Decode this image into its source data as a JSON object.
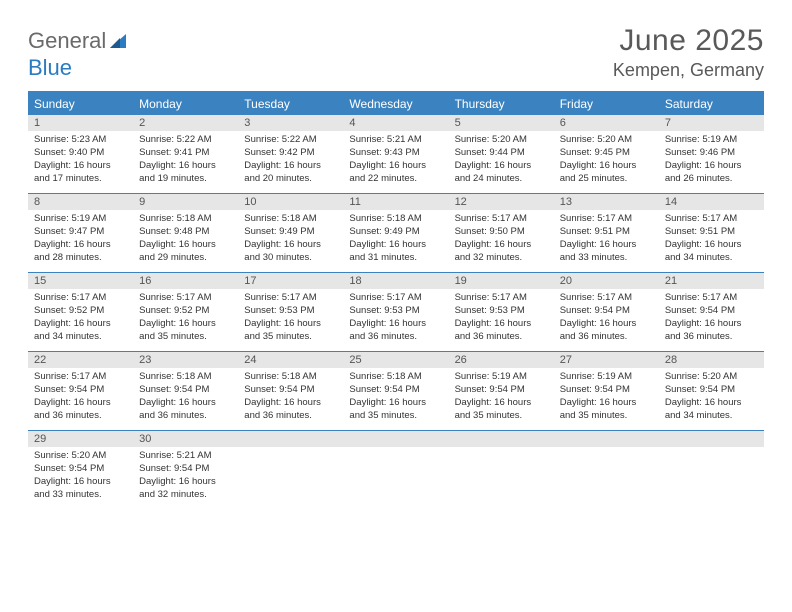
{
  "logo": {
    "general": "General",
    "blue": "Blue"
  },
  "title": "June 2025",
  "location": "Kempen, Germany",
  "colors": {
    "header_bg": "#3b83c0",
    "header_text": "#ffffff",
    "daynum_bg": "#e6e6e6",
    "border": "#3b83c0",
    "body_text": "#333333",
    "title_text": "#595959"
  },
  "weekdays": [
    "Sunday",
    "Monday",
    "Tuesday",
    "Wednesday",
    "Thursday",
    "Friday",
    "Saturday"
  ],
  "weeks": [
    [
      {
        "n": "1",
        "sr": "5:23 AM",
        "ss": "9:40 PM",
        "dl": "16 hours and 17 minutes."
      },
      {
        "n": "2",
        "sr": "5:22 AM",
        "ss": "9:41 PM",
        "dl": "16 hours and 19 minutes."
      },
      {
        "n": "3",
        "sr": "5:22 AM",
        "ss": "9:42 PM",
        "dl": "16 hours and 20 minutes."
      },
      {
        "n": "4",
        "sr": "5:21 AM",
        "ss": "9:43 PM",
        "dl": "16 hours and 22 minutes."
      },
      {
        "n": "5",
        "sr": "5:20 AM",
        "ss": "9:44 PM",
        "dl": "16 hours and 24 minutes."
      },
      {
        "n": "6",
        "sr": "5:20 AM",
        "ss": "9:45 PM",
        "dl": "16 hours and 25 minutes."
      },
      {
        "n": "7",
        "sr": "5:19 AM",
        "ss": "9:46 PM",
        "dl": "16 hours and 26 minutes."
      }
    ],
    [
      {
        "n": "8",
        "sr": "5:19 AM",
        "ss": "9:47 PM",
        "dl": "16 hours and 28 minutes."
      },
      {
        "n": "9",
        "sr": "5:18 AM",
        "ss": "9:48 PM",
        "dl": "16 hours and 29 minutes."
      },
      {
        "n": "10",
        "sr": "5:18 AM",
        "ss": "9:49 PM",
        "dl": "16 hours and 30 minutes."
      },
      {
        "n": "11",
        "sr": "5:18 AM",
        "ss": "9:49 PM",
        "dl": "16 hours and 31 minutes."
      },
      {
        "n": "12",
        "sr": "5:17 AM",
        "ss": "9:50 PM",
        "dl": "16 hours and 32 minutes."
      },
      {
        "n": "13",
        "sr": "5:17 AM",
        "ss": "9:51 PM",
        "dl": "16 hours and 33 minutes."
      },
      {
        "n": "14",
        "sr": "5:17 AM",
        "ss": "9:51 PM",
        "dl": "16 hours and 34 minutes."
      }
    ],
    [
      {
        "n": "15",
        "sr": "5:17 AM",
        "ss": "9:52 PM",
        "dl": "16 hours and 34 minutes."
      },
      {
        "n": "16",
        "sr": "5:17 AM",
        "ss": "9:52 PM",
        "dl": "16 hours and 35 minutes."
      },
      {
        "n": "17",
        "sr": "5:17 AM",
        "ss": "9:53 PM",
        "dl": "16 hours and 35 minutes."
      },
      {
        "n": "18",
        "sr": "5:17 AM",
        "ss": "9:53 PM",
        "dl": "16 hours and 36 minutes."
      },
      {
        "n": "19",
        "sr": "5:17 AM",
        "ss": "9:53 PM",
        "dl": "16 hours and 36 minutes."
      },
      {
        "n": "20",
        "sr": "5:17 AM",
        "ss": "9:54 PM",
        "dl": "16 hours and 36 minutes."
      },
      {
        "n": "21",
        "sr": "5:17 AM",
        "ss": "9:54 PM",
        "dl": "16 hours and 36 minutes."
      }
    ],
    [
      {
        "n": "22",
        "sr": "5:17 AM",
        "ss": "9:54 PM",
        "dl": "16 hours and 36 minutes."
      },
      {
        "n": "23",
        "sr": "5:18 AM",
        "ss": "9:54 PM",
        "dl": "16 hours and 36 minutes."
      },
      {
        "n": "24",
        "sr": "5:18 AM",
        "ss": "9:54 PM",
        "dl": "16 hours and 36 minutes."
      },
      {
        "n": "25",
        "sr": "5:18 AM",
        "ss": "9:54 PM",
        "dl": "16 hours and 35 minutes."
      },
      {
        "n": "26",
        "sr": "5:19 AM",
        "ss": "9:54 PM",
        "dl": "16 hours and 35 minutes."
      },
      {
        "n": "27",
        "sr": "5:19 AM",
        "ss": "9:54 PM",
        "dl": "16 hours and 35 minutes."
      },
      {
        "n": "28",
        "sr": "5:20 AM",
        "ss": "9:54 PM",
        "dl": "16 hours and 34 minutes."
      }
    ],
    [
      {
        "n": "29",
        "sr": "5:20 AM",
        "ss": "9:54 PM",
        "dl": "16 hours and 33 minutes."
      },
      {
        "n": "30",
        "sr": "5:21 AM",
        "ss": "9:54 PM",
        "dl": "16 hours and 32 minutes."
      },
      null,
      null,
      null,
      null,
      null
    ]
  ],
  "labels": {
    "sunrise": "Sunrise:",
    "sunset": "Sunset:",
    "daylight": "Daylight:"
  }
}
